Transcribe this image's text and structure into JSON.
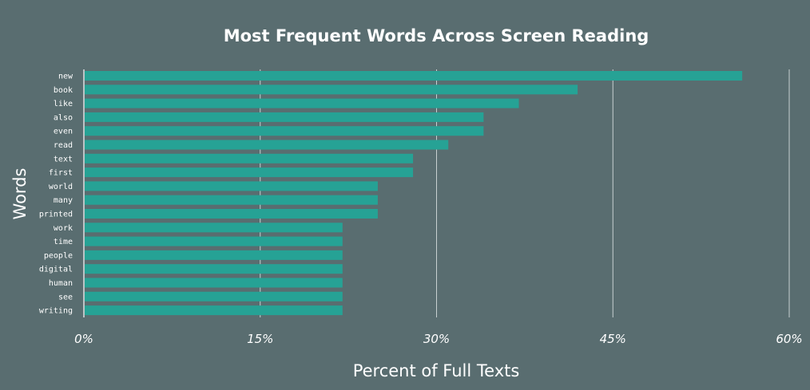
{
  "chart_data": {
    "type": "bar",
    "orientation": "horizontal",
    "title": "Most Frequent Words Across Screen Reading",
    "xlabel": "Percent of Full Texts",
    "ylabel": "Words",
    "categories": [
      "new",
      "book",
      "like",
      "also",
      "even",
      "read",
      "text",
      "first",
      "world",
      "many",
      "printed",
      "work",
      "time",
      "people",
      "digital",
      "human",
      "see",
      "writing"
    ],
    "values": [
      56,
      42,
      37,
      34,
      34,
      31,
      28,
      28,
      25,
      25,
      25,
      22,
      22,
      22,
      22,
      22,
      22,
      22
    ],
    "xlim": [
      0,
      60
    ],
    "xticks": [
      0,
      15,
      30,
      45,
      60
    ],
    "xtick_labels": [
      "0%",
      "15%",
      "30%",
      "45%",
      "60%"
    ],
    "grid": "vertical",
    "colors": {
      "background": "#596d70",
      "bar": "#26a295",
      "grid": "#c8d0d1",
      "text": "#ffffff"
    }
  }
}
